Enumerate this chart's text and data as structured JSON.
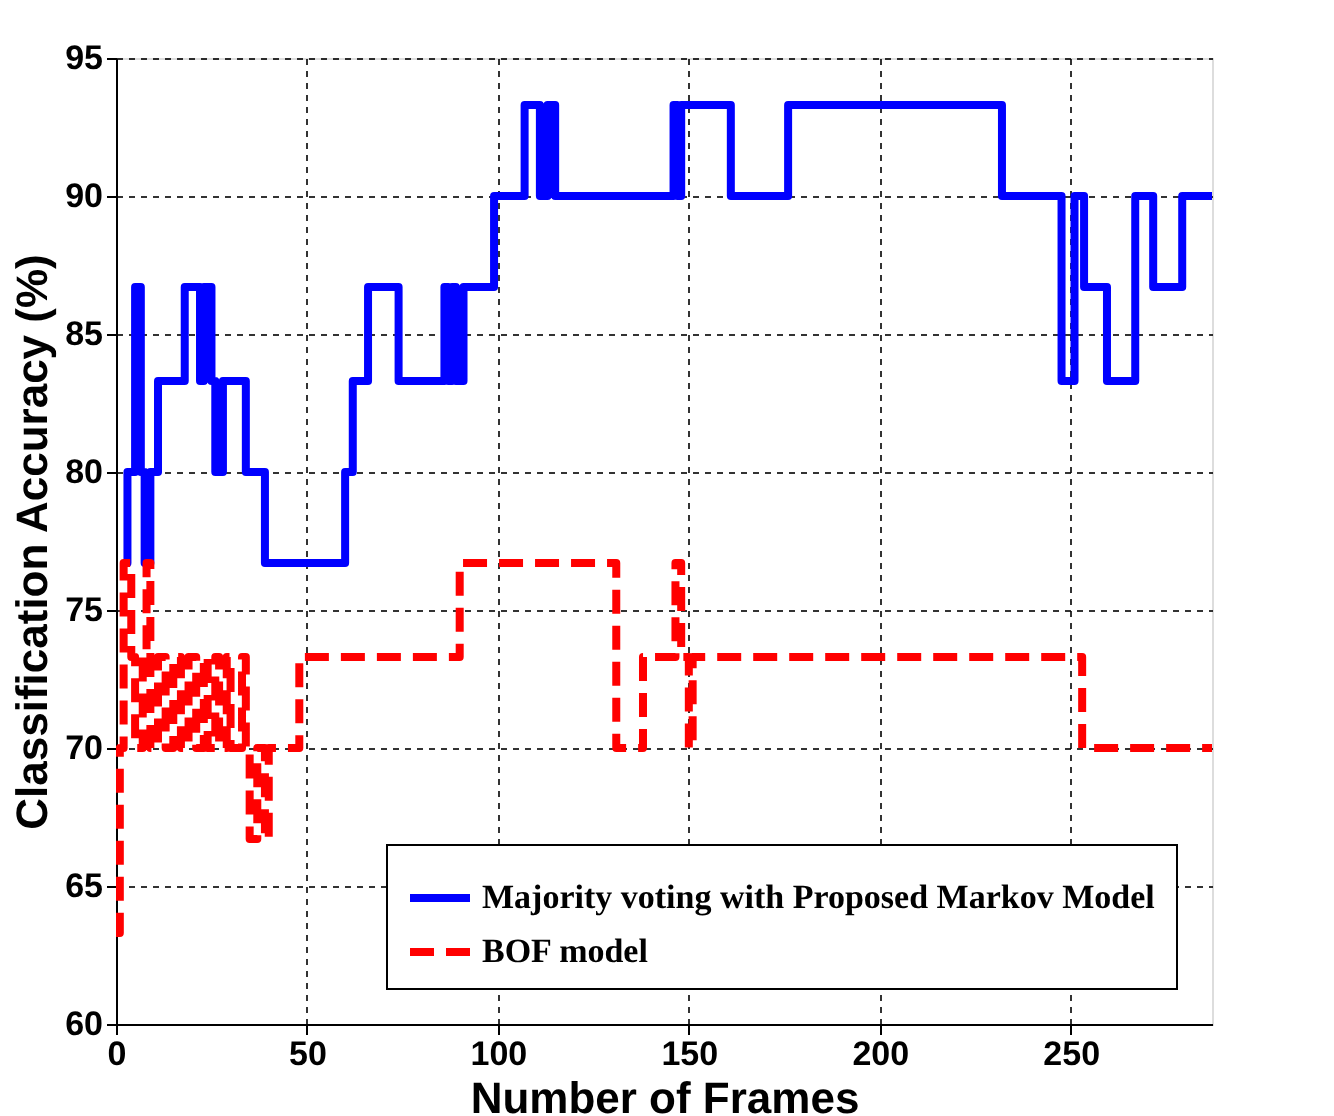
{
  "chart_data": {
    "type": "step",
    "xlabel": "Number of Frames",
    "ylabel": "Classification Accuracy (%)",
    "xlim": [
      0,
      287
    ],
    "xticks": [
      0,
      50,
      100,
      150,
      200,
      250
    ],
    "ylim": [
      60,
      95
    ],
    "yticks": [
      60,
      65,
      70,
      75,
      80,
      85,
      90,
      95
    ],
    "grid": true,
    "legend": "bottom right",
    "marker": "none",
    "series": [
      {
        "name": "Majority voting with Proposed Markov Model",
        "color": "#0000ff",
        "line_style": "solid",
        "x": [
          2,
          3,
          5,
          6.5,
          7.5,
          9,
          11,
          18,
          22,
          23,
          25,
          26,
          28,
          34,
          39,
          60,
          62,
          66,
          74,
          86,
          87,
          88,
          89,
          91,
          99,
          107,
          111,
          113,
          115,
          146,
          147,
          148,
          161,
          176,
          232,
          247.6,
          251,
          253.5,
          259.5,
          266.9,
          271.6,
          279.2,
          287
        ],
        "values": [
          76.7,
          80,
          86.7,
          80,
          76.7,
          80,
          83.3,
          86.7,
          83.3,
          86.7,
          83.3,
          80,
          83.3,
          80,
          76.7,
          80,
          83.3,
          86.7,
          83.3,
          86.7,
          83.3,
          86.7,
          83.3,
          86.7,
          90,
          93.3,
          90,
          93.3,
          90,
          93.3,
          90,
          93.3,
          90,
          93.3,
          90,
          83.3,
          90,
          86.7,
          83.3,
          90,
          86.7,
          90,
          90
        ]
      },
      {
        "name": "BOF model",
        "color": "#ff0000",
        "line_style": "dashed",
        "x": [
          0,
          1,
          2,
          4,
          5,
          7,
          8,
          9,
          11,
          13,
          15,
          17,
          19,
          21,
          23,
          24,
          26,
          27,
          29,
          30,
          33,
          34,
          35,
          37,
          39,
          40,
          48,
          90,
          131,
          138,
          146.5,
          148,
          150,
          151,
          251,
          253,
          287
        ],
        "values": [
          63.3,
          70,
          76.7,
          73.3,
          70,
          73.3,
          76.7,
          70,
          73.3,
          70,
          73.3,
          70,
          73.3,
          70,
          73.3,
          70,
          73.3,
          70,
          73.3,
          70,
          73.3,
          70,
          66.7,
          70,
          66.7,
          70,
          73.3,
          76.7,
          70,
          73.3,
          76.7,
          73.3,
          70,
          73.3,
          73.3,
          70,
          70
        ]
      }
    ]
  }
}
